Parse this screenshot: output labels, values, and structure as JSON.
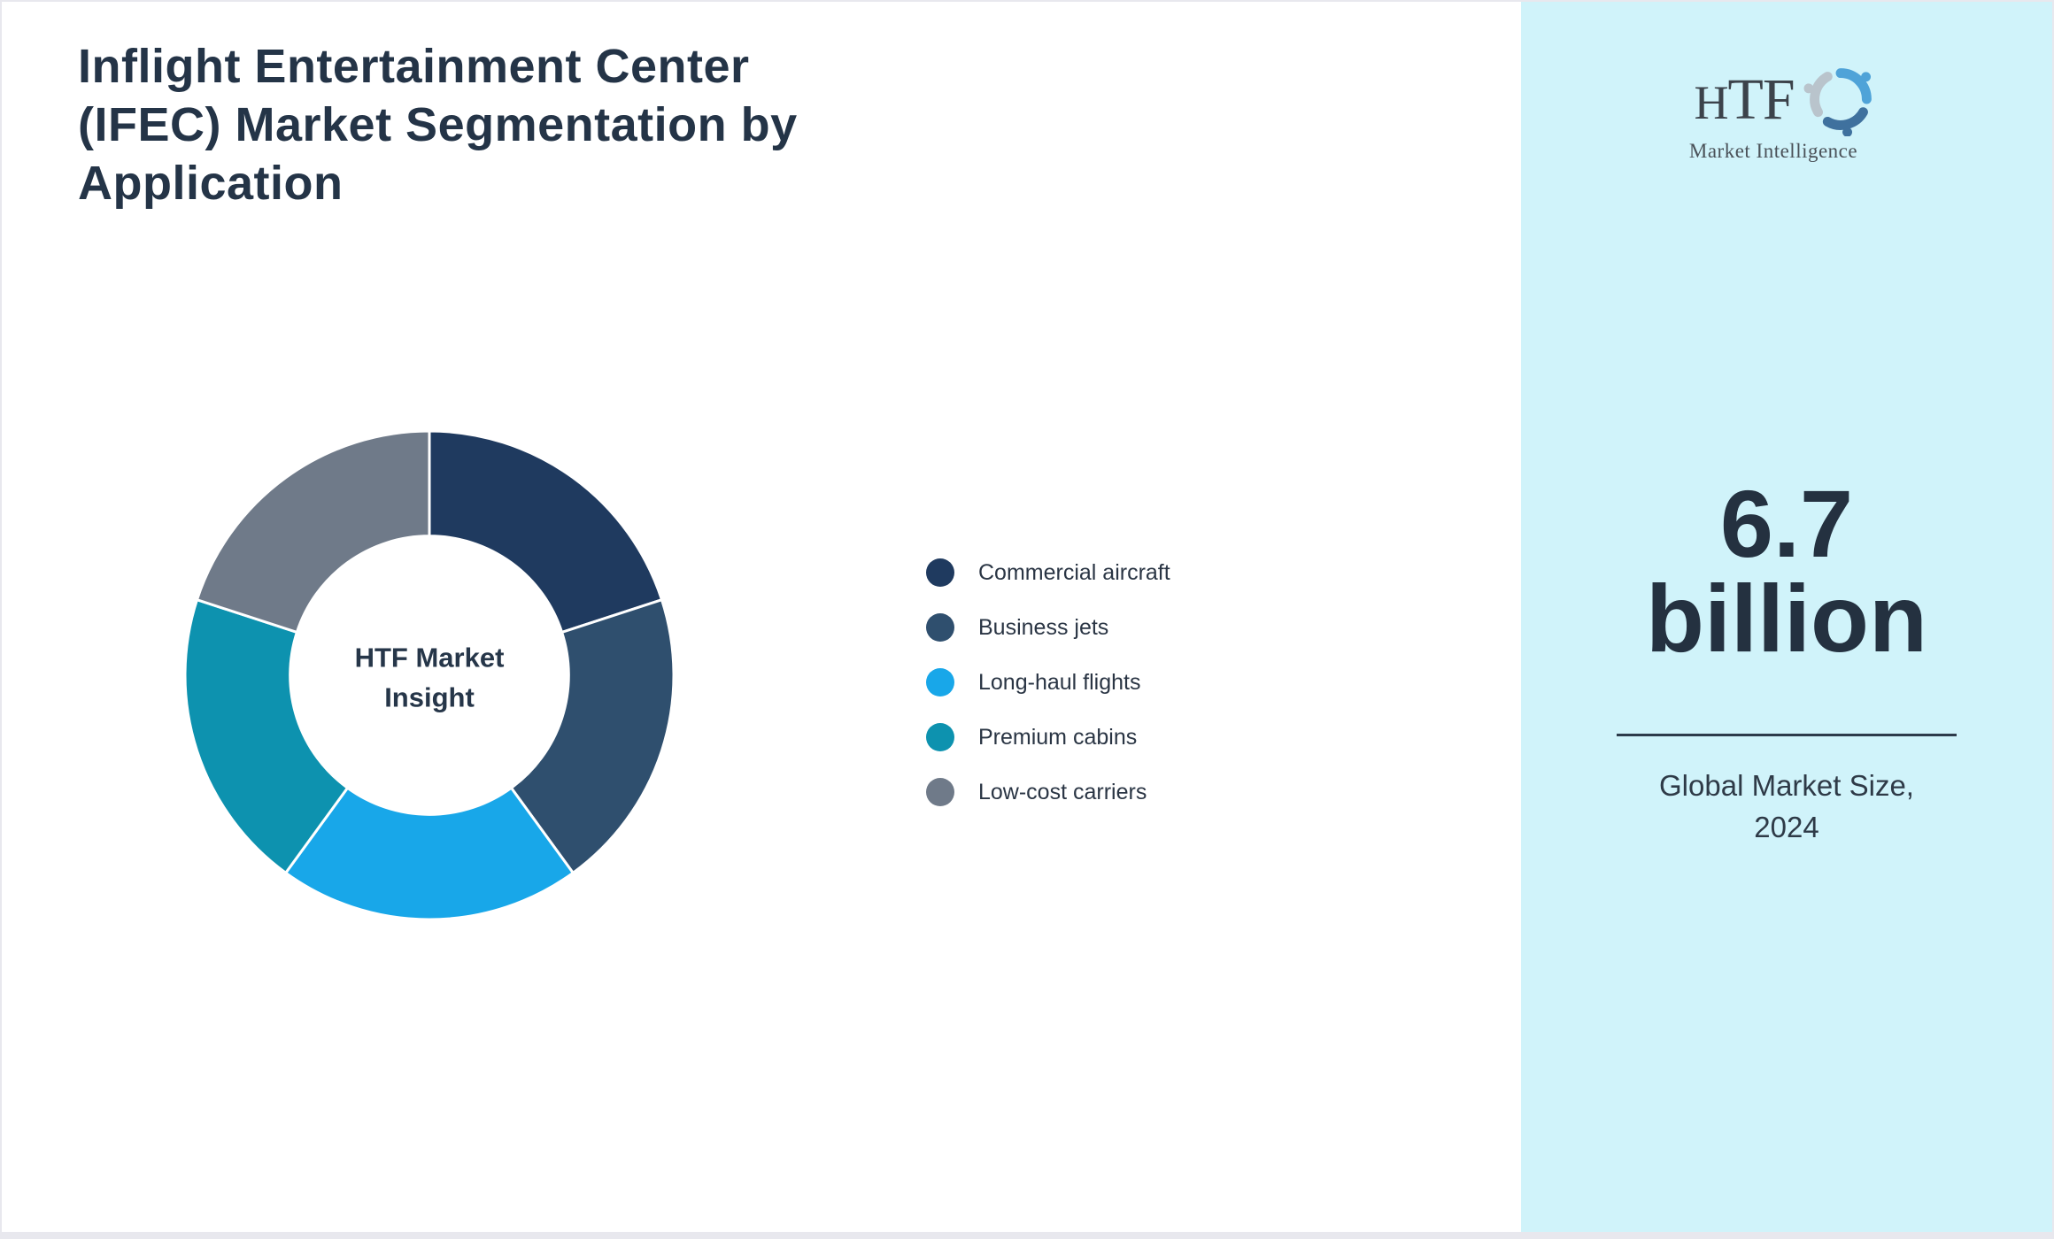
{
  "title": {
    "lines": [
      "Inflight Entertainment Center",
      "(IFEC) Market Segmentation by",
      "Application"
    ],
    "color": "#243447"
  },
  "logo": {
    "name": "HTF",
    "subtitle": "Market Intelligence"
  },
  "chart_data": {
    "type": "pie",
    "subtype": "donut",
    "title": "Inflight Entertainment Center (IFEC) Market Segmentation by Application",
    "center_label_lines": [
      "HTF Market",
      "Insight"
    ],
    "categories": [
      "Commercial aircraft",
      "Business jets",
      "Long-haul flights",
      "Premium cabins",
      "Low-cost carriers"
    ],
    "values": [
      20,
      20,
      20,
      20,
      20
    ],
    "value_unit": "percent",
    "colors": [
      "#1F3A5F",
      "#2F4F6E",
      "#18A7E9",
      "#0D92AF",
      "#6F7A89"
    ],
    "donut_hole_ratio": 0.57,
    "start_angle_deg": 0,
    "direction": "clockwise",
    "separator_color": "#ffffff",
    "legend_position": "right"
  },
  "stat_panel": {
    "background": "#D0F3FA",
    "value": "6.7",
    "unit": "billion",
    "caption_lines": [
      "Global Market Size,",
      "2024"
    ]
  }
}
